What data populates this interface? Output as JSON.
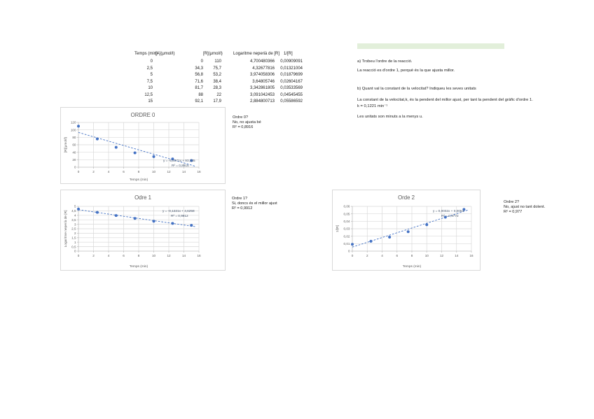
{
  "colors": {
    "accent_blue": "#4472c4",
    "grid_gray": "#d9d9d9",
    "axis_gray": "#bfbfbf",
    "label_gray": "#595959",
    "eq_blue": "#44546a",
    "highlight_green": "#e2efda"
  },
  "table": {
    "headers": [
      "Temps (min)",
      "[A](μmol/l)",
      "[R](μmol/l)",
      "Logaritme neperià de [R]",
      "1/[R]"
    ],
    "rows": [
      [
        "0",
        "0",
        "110",
        "4,700480366",
        "0,00909091"
      ],
      [
        "2,5",
        "34,3",
        "75,7",
        "4,32677816",
        "0,01321004"
      ],
      [
        "5",
        "56,8",
        "53,2",
        "3,974058306",
        "0,01879699"
      ],
      [
        "7,5",
        "71,6",
        "38,4",
        "3,64805746",
        "0,02604167"
      ],
      [
        "10",
        "81,7",
        "28,3",
        "3,342861805",
        "0,03533569"
      ],
      [
        "12,5",
        "88",
        "22",
        "3,091042453",
        "0,04545455"
      ],
      [
        "15",
        "92,1",
        "17,9",
        "2,884800713",
        "0,05586592"
      ]
    ]
  },
  "answers": {
    "q_a": "a) Trobeu l'ordre de la reacció.",
    "a_a": "La reacció es d'ordre 1, perquè és la que ajusta millor.",
    "q_b": "b) Quant val la constant de la velocitat? Indiqueu les seves unitats",
    "a_b1": "La constant de la velocitat,k, és la pendent del millor ajust, per tant la pendent del gràfic d'ordre 1.",
    "a_b2": "k = 0,1221 min⁻¹",
    "a_b3": "Les unitats son minuts a la menys u."
  },
  "notes": {
    "ordre0": [
      "Ordre 0?",
      "No, no ajusta bé",
      "R² = 0,8916"
    ],
    "ordre1": [
      "Ordre 1?",
      "Si, doncs és el millor ajust",
      "R² = 0,9912"
    ],
    "ordre2": [
      "Ordre 2?",
      "No, ajust no tant dolent.",
      "R² = 0,977"
    ]
  },
  "chart_data": [
    {
      "id": "chart0",
      "type": "scatter",
      "title": "ORDRE 0",
      "xlabel": "Temps (min)",
      "ylabel": "[R](μmol/l)",
      "x": [
        0,
        2.5,
        5,
        7.5,
        10,
        12.5,
        15
      ],
      "y": [
        110,
        75.7,
        53.2,
        38.4,
        28.3,
        22,
        17.9
      ],
      "xlim": [
        0,
        16
      ],
      "ylim": [
        0,
        120
      ],
      "xticks": [
        0,
        2,
        4,
        6,
        8,
        10,
        12,
        14,
        16
      ],
      "xtick_labels": [
        "0",
        "2",
        "4",
        "6",
        "8",
        "10",
        "12",
        "14",
        "16"
      ],
      "yticks": [
        0,
        20,
        40,
        60,
        80,
        100,
        120
      ],
      "ytick_labels": [
        "0",
        "20",
        "40",
        "60",
        "80",
        "100",
        "120"
      ],
      "grid": true,
      "trendline": {
        "slope": -5.8371,
        "intercept": 93.135,
        "x0": 0,
        "x1": 15.6,
        "style": "dashed"
      },
      "equation": "y = -5,8371x + 93,135",
      "r_squared": "R² = 0,8916"
    },
    {
      "id": "chart1",
      "type": "scatter",
      "title": "Odre 1",
      "xlabel": "Temps (min)",
      "ylabel": "Logaritme neperià de [R]",
      "x": [
        0,
        2.5,
        5,
        7.5,
        10,
        12.5,
        15
      ],
      "y": [
        4.700480366,
        4.32677816,
        3.974058306,
        3.64805746,
        3.342861805,
        3.091042453,
        2.884800713
      ],
      "xlim": [
        0,
        16
      ],
      "ylim": [
        0,
        5
      ],
      "xticks": [
        0,
        2,
        4,
        6,
        8,
        10,
        12,
        14,
        16
      ],
      "xtick_labels": [
        "0",
        "2",
        "4",
        "6",
        "8",
        "10",
        "12",
        "14",
        "16"
      ],
      "yticks": [
        0,
        0.5,
        1,
        1.5,
        2,
        2.5,
        3,
        3.5,
        4,
        4.5,
        5
      ],
      "ytick_labels": [
        "0",
        "0,5",
        "1",
        "1,5",
        "2",
        "2,5",
        "3",
        "3,5",
        "4",
        "4,5",
        "5"
      ],
      "grid": true,
      "trendline": {
        "slope": -0.1221,
        "intercept": 4.6258,
        "x0": 0,
        "x1": 15.5,
        "style": "dashed"
      },
      "equation": "y = -0,1221x + 4,6258",
      "r_squared": "R² = 0,9912"
    },
    {
      "id": "chart2",
      "type": "scatter",
      "title": "Orde 2",
      "xlabel": "Temps (min)",
      "ylabel": "1/[R]",
      "x": [
        0,
        2.5,
        5,
        7.5,
        10,
        12.5,
        15
      ],
      "y": [
        0.00909091,
        0.01321004,
        0.01879699,
        0.02604167,
        0.03533569,
        0.04545455,
        0.05586592
      ],
      "xlim": [
        0,
        16
      ],
      "ylim": [
        0,
        0.06
      ],
      "xticks": [
        0,
        2,
        4,
        6,
        8,
        10,
        12,
        14,
        16
      ],
      "xtick_labels": [
        "0",
        "2",
        "4",
        "6",
        "8",
        "10",
        "12",
        "14",
        "16"
      ],
      "yticks": [
        0,
        0.01,
        0.02,
        0.03,
        0.04,
        0.05,
        0.06
      ],
      "ytick_labels": [
        "0",
        "0,01",
        "0,02",
        "0,03",
        "0,04",
        "0,05",
        "0,06"
      ],
      "grid": true,
      "trendline": {
        "slope": 0.0032,
        "intercept": 0.0054,
        "x0": 0,
        "x1": 15.6,
        "style": "dashed"
      },
      "equation": "y = 0,0032x + 0,0054",
      "r_squared": "R² = 0,9772"
    }
  ]
}
